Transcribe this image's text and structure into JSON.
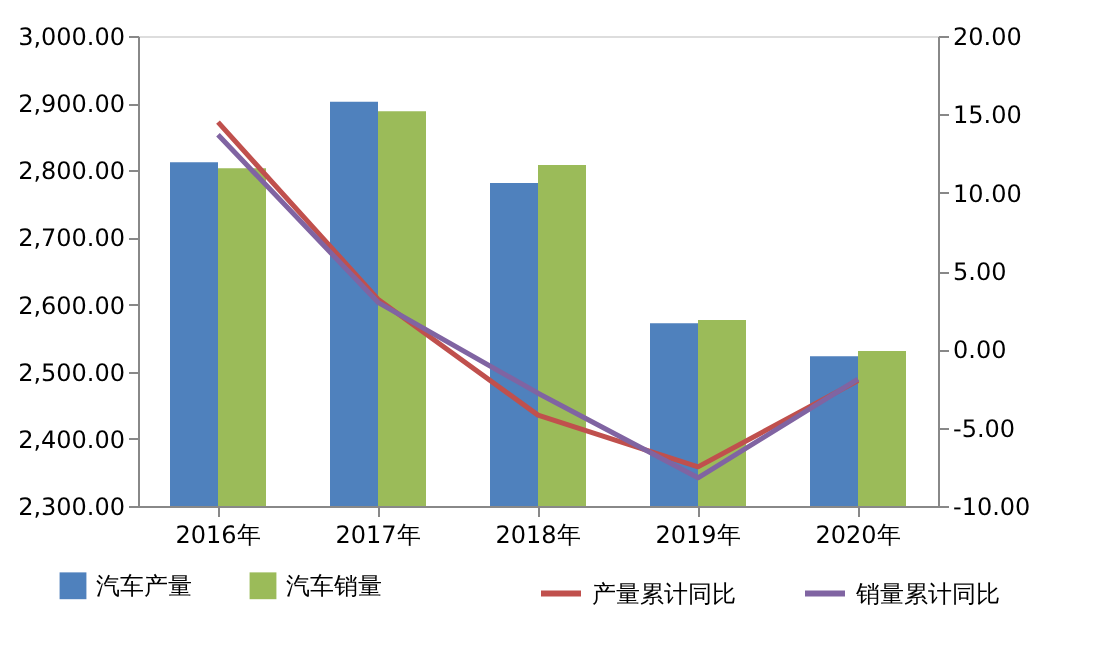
{
  "chart_data": {
    "type": "bar",
    "categories": [
      "2016年",
      "2017年",
      "2018年",
      "2019年",
      "2020年"
    ],
    "series": [
      {
        "name": "汽车产量",
        "color": "#4f81bd",
        "values": [
          2812,
          2902,
          2781,
          2572,
          2523
        ]
      },
      {
        "name": "汽车销量",
        "color": "#9bbb59",
        "values": [
          2803,
          2888,
          2808,
          2577,
          2531
        ]
      },
      {
        "name": "产量累计同比",
        "type": "line",
        "axis": "y2",
        "color": "#c0504d",
        "values": [
          14.5,
          3.2,
          -4.2,
          -7.5,
          -2.0
        ]
      },
      {
        "name": "销量累计同比",
        "type": "line",
        "axis": "y2",
        "color": "#8064a2",
        "values": [
          13.7,
          3.0,
          -2.8,
          -8.2,
          -1.9
        ]
      }
    ],
    "ylim": [
      2300,
      3000
    ],
    "yticks": [
      {
        "value": 2300,
        "label": "2,300.00"
      },
      {
        "value": 2400,
        "label": "2,400.00"
      },
      {
        "value": 2500,
        "label": "2,500.00"
      },
      {
        "value": 2600,
        "label": "2,600.00"
      },
      {
        "value": 2700,
        "label": "2,700.00"
      },
      {
        "value": 2800,
        "label": "2,800.00"
      },
      {
        "value": 2900,
        "label": "2,900.00"
      },
      {
        "value": 3000,
        "label": "3,000.00"
      }
    ],
    "y2lim": [
      -10,
      20
    ],
    "y2ticks": [
      {
        "value": -10,
        "label": "-10.00"
      },
      {
        "value": -5,
        "label": "-5.00"
      },
      {
        "value": 0,
        "label": "0.00"
      },
      {
        "value": 5,
        "label": "5.00"
      },
      {
        "value": 10,
        "label": "10.00"
      },
      {
        "value": 15,
        "label": "15.00"
      },
      {
        "value": 20,
        "label": "20.00"
      }
    ],
    "grid": false,
    "legend": "bottom",
    "marker": "none",
    "line_style": "solid"
  }
}
